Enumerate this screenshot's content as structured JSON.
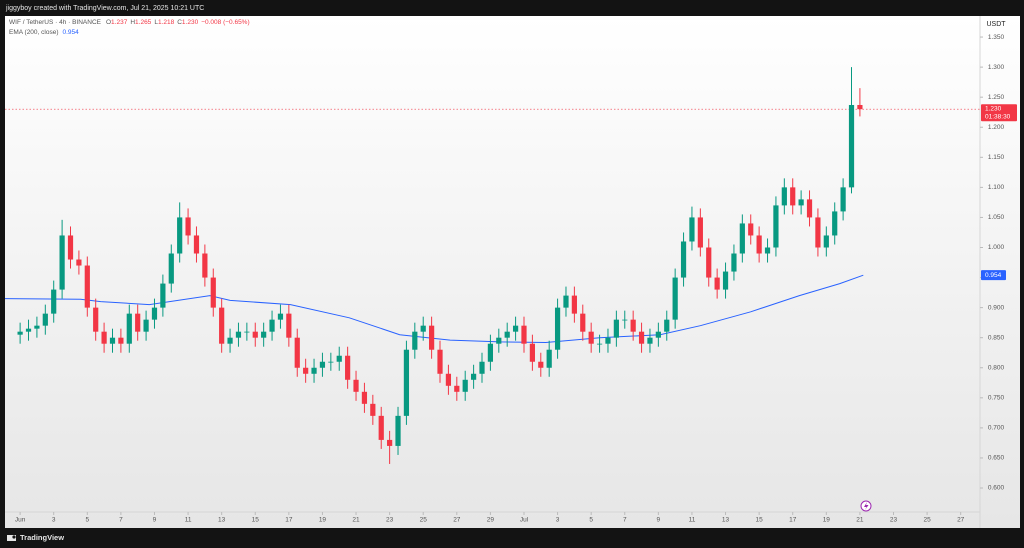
{
  "header": "jiggyboy created with TradingView.com, Jul 21, 2025 10:21 UTC",
  "footer": "TradingView",
  "chart_data": {
    "type": "candlestick",
    "symbol": "WIF / TetherUS · 4h · BINANCE",
    "ohlc": [
      {
        "label": "O",
        "value": "1.237"
      },
      {
        "label": "H",
        "value": "1.265"
      },
      {
        "label": "L",
        "value": "1.218"
      },
      {
        "label": "C",
        "value": "1.230"
      }
    ],
    "change": "−0.008 (−0.65%)",
    "y_unit": "USDT",
    "up_color": "#089981",
    "down_color": "#f23645",
    "grid": false,
    "xlim": [
      -0.9,
      57.15
    ],
    "ylim": [
      0.5335,
      1.385
    ],
    "xticks": [
      {
        "value": 0,
        "label": "Jun"
      },
      {
        "value": 2,
        "label": "3"
      },
      {
        "value": 4,
        "label": "5"
      },
      {
        "value": 6,
        "label": "7"
      },
      {
        "value": 8,
        "label": "9"
      },
      {
        "value": 10,
        "label": "11"
      },
      {
        "value": 12,
        "label": "13"
      },
      {
        "value": 14,
        "label": "15"
      },
      {
        "value": 16,
        "label": "17"
      },
      {
        "value": 18,
        "label": "19"
      },
      {
        "value": 20,
        "label": "21"
      },
      {
        "value": 22,
        "label": "23"
      },
      {
        "value": 24,
        "label": "25"
      },
      {
        "value": 26,
        "label": "27"
      },
      {
        "value": 28,
        "label": "29"
      },
      {
        "value": 30,
        "label": "Jul"
      },
      {
        "value": 32,
        "label": "3"
      },
      {
        "value": 34,
        "label": "5"
      },
      {
        "value": 36,
        "label": "7"
      },
      {
        "value": 38,
        "label": "9"
      },
      {
        "value": 40,
        "label": "11"
      },
      {
        "value": 42,
        "label": "13"
      },
      {
        "value": 44,
        "label": "15"
      },
      {
        "value": 46,
        "label": "17"
      },
      {
        "value": 48,
        "label": "19"
      },
      {
        "value": 50,
        "label": "21"
      },
      {
        "value": 52,
        "label": "23"
      },
      {
        "value": 54,
        "label": "25"
      },
      {
        "value": 56,
        "label": "27"
      }
    ],
    "yticks": [
      {
        "value": 0.6,
        "label": "0.600"
      },
      {
        "value": 0.65,
        "label": "0.650"
      },
      {
        "value": 0.7,
        "label": "0.700"
      },
      {
        "value": 0.75,
        "label": "0.750"
      },
      {
        "value": 0.8,
        "label": "0.800"
      },
      {
        "value": 0.85,
        "label": "0.850"
      },
      {
        "value": 0.9,
        "label": "0.900"
      },
      {
        "value": 0.95,
        "label": "0.950"
      },
      {
        "value": 1.0,
        "label": "1.000"
      },
      {
        "value": 1.05,
        "label": "1.050"
      },
      {
        "value": 1.1,
        "label": "1.100"
      },
      {
        "value": 1.15,
        "label": "1.150"
      },
      {
        "value": 1.2,
        "label": "1.200"
      },
      {
        "value": 1.25,
        "label": "1.250"
      },
      {
        "value": 1.3,
        "label": "1.300"
      },
      {
        "value": 1.35,
        "label": "1.350"
      }
    ],
    "x": [
      0,
      0.5,
      1,
      1.5,
      2,
      2.5,
      3,
      3.5,
      4,
      4.5,
      5,
      5.5,
      6,
      6.5,
      7,
      7.5,
      8,
      8.5,
      9,
      9.5,
      10,
      10.5,
      11,
      11.5,
      12,
      12.5,
      13,
      13.5,
      14,
      14.5,
      15,
      15.5,
      16,
      16.5,
      17,
      17.5,
      18,
      18.5,
      19,
      19.5,
      20,
      20.5,
      21,
      21.5,
      22,
      22.5,
      23,
      23.5,
      24,
      24.5,
      25,
      25.5,
      26,
      26.5,
      27,
      27.5,
      28,
      28.5,
      29,
      29.5,
      30,
      30.5,
      31,
      31.5,
      32,
      32.5,
      33,
      33.5,
      34,
      34.5,
      35,
      35.5,
      36,
      36.5,
      37,
      37.5,
      38,
      38.5,
      39,
      39.5,
      40,
      40.5,
      41,
      41.5,
      42,
      42.5,
      43,
      43.5,
      44,
      44.5,
      45,
      45.5,
      46,
      46.5,
      47,
      47.5,
      48,
      48.5,
      49,
      49.5,
      50
    ],
    "open": [
      0.855,
      0.86,
      0.865,
      0.87,
      0.89,
      0.93,
      1.02,
      0.98,
      0.97,
      0.9,
      0.86,
      0.84,
      0.85,
      0.84,
      0.89,
      0.86,
      0.88,
      0.9,
      0.94,
      0.99,
      1.05,
      1.02,
      0.99,
      0.95,
      0.9,
      0.84,
      0.85,
      0.86,
      0.86,
      0.85,
      0.86,
      0.88,
      0.89,
      0.85,
      0.8,
      0.79,
      0.8,
      0.81,
      0.81,
      0.82,
      0.78,
      0.76,
      0.74,
      0.72,
      0.68,
      0.67,
      0.72,
      0.83,
      0.86,
      0.87,
      0.83,
      0.79,
      0.77,
      0.76,
      0.78,
      0.79,
      0.81,
      0.84,
      0.85,
      0.86,
      0.87,
      0.84,
      0.81,
      0.8,
      0.83,
      0.9,
      0.92,
      0.89,
      0.86,
      0.84,
      0.84,
      0.85,
      0.88,
      0.88,
      0.86,
      0.84,
      0.85,
      0.86,
      0.88,
      0.95,
      1.01,
      1.05,
      1.0,
      0.95,
      0.93,
      0.96,
      0.99,
      1.04,
      1.02,
      0.99,
      1.0,
      1.07,
      1.1,
      1.07,
      1.08,
      1.05,
      1.0,
      1.02,
      1.06,
      1.1,
      1.237
    ],
    "high": [
      0.875,
      0.88,
      0.885,
      0.905,
      0.945,
      1.046,
      1.035,
      0.995,
      0.985,
      0.915,
      0.875,
      0.865,
      0.865,
      0.905,
      0.905,
      0.895,
      0.915,
      0.955,
      1.005,
      1.075,
      1.065,
      1.035,
      1.005,
      0.965,
      0.915,
      0.865,
      0.875,
      0.875,
      0.875,
      0.875,
      0.895,
      0.905,
      0.905,
      0.865,
      0.815,
      0.815,
      0.825,
      0.825,
      0.835,
      0.835,
      0.795,
      0.775,
      0.755,
      0.735,
      0.695,
      0.735,
      0.845,
      0.875,
      0.885,
      0.885,
      0.845,
      0.805,
      0.785,
      0.795,
      0.805,
      0.825,
      0.855,
      0.865,
      0.875,
      0.885,
      0.885,
      0.855,
      0.825,
      0.845,
      0.915,
      0.935,
      0.935,
      0.905,
      0.875,
      0.855,
      0.865,
      0.895,
      0.895,
      0.895,
      0.875,
      0.865,
      0.875,
      0.895,
      0.965,
      1.025,
      1.068,
      1.065,
      1.015,
      0.965,
      0.975,
      1.005,
      1.055,
      1.055,
      1.035,
      1.015,
      1.085,
      1.115,
      1.115,
      1.095,
      1.095,
      1.065,
      1.035,
      1.075,
      1.115,
      1.3,
      1.265
    ],
    "low": [
      0.84,
      0.845,
      0.85,
      0.855,
      0.875,
      0.915,
      0.965,
      0.955,
      0.885,
      0.845,
      0.825,
      0.825,
      0.825,
      0.825,
      0.845,
      0.845,
      0.865,
      0.885,
      0.925,
      0.975,
      1.005,
      0.975,
      0.935,
      0.885,
      0.825,
      0.825,
      0.835,
      0.845,
      0.835,
      0.835,
      0.845,
      0.865,
      0.835,
      0.785,
      0.775,
      0.775,
      0.785,
      0.795,
      0.795,
      0.765,
      0.745,
      0.725,
      0.705,
      0.665,
      0.64,
      0.655,
      0.705,
      0.815,
      0.845,
      0.815,
      0.775,
      0.755,
      0.745,
      0.745,
      0.765,
      0.775,
      0.795,
      0.825,
      0.835,
      0.845,
      0.825,
      0.795,
      0.785,
      0.785,
      0.815,
      0.885,
      0.875,
      0.845,
      0.825,
      0.825,
      0.825,
      0.835,
      0.865,
      0.845,
      0.825,
      0.825,
      0.835,
      0.845,
      0.865,
      0.935,
      0.995,
      0.985,
      0.935,
      0.915,
      0.915,
      0.945,
      0.975,
      1.005,
      0.975,
      0.975,
      0.985,
      1.055,
      1.055,
      1.055,
      1.035,
      0.985,
      0.985,
      1.005,
      1.045,
      1.09,
      1.218
    ],
    "close": [
      0.86,
      0.865,
      0.87,
      0.89,
      0.93,
      1.02,
      0.98,
      0.97,
      0.9,
      0.86,
      0.84,
      0.85,
      0.84,
      0.89,
      0.86,
      0.88,
      0.9,
      0.94,
      0.99,
      1.05,
      1.02,
      0.99,
      0.95,
      0.9,
      0.84,
      0.85,
      0.86,
      0.86,
      0.85,
      0.86,
      0.88,
      0.89,
      0.85,
      0.8,
      0.79,
      0.8,
      0.81,
      0.81,
      0.82,
      0.78,
      0.76,
      0.74,
      0.72,
      0.68,
      0.67,
      0.72,
      0.83,
      0.86,
      0.87,
      0.83,
      0.79,
      0.77,
      0.76,
      0.78,
      0.79,
      0.81,
      0.84,
      0.85,
      0.86,
      0.87,
      0.84,
      0.81,
      0.8,
      0.83,
      0.9,
      0.92,
      0.89,
      0.86,
      0.84,
      0.84,
      0.85,
      0.88,
      0.88,
      0.86,
      0.84,
      0.85,
      0.86,
      0.88,
      0.95,
      1.01,
      1.05,
      1.0,
      0.95,
      0.93,
      0.96,
      0.99,
      1.04,
      1.02,
      0.99,
      1.0,
      1.07,
      1.1,
      1.07,
      1.08,
      1.05,
      1.0,
      1.02,
      1.06,
      1.1,
      1.237,
      1.23
    ],
    "last_price": {
      "value": 1.23,
      "label": "1.230",
      "countdown": "01:38:30"
    },
    "ema": {
      "name": "EMA (200, close)",
      "color": "#2962ff",
      "tag": {
        "value": 0.954,
        "label": "0.954"
      },
      "x": [
        -0.9,
        3.6,
        4.8,
        7.7,
        11.3,
        12.5,
        16.1,
        19.6,
        22.6,
        25.6,
        28.6,
        31.3,
        34.5,
        38.1,
        40.5,
        43.5,
        46.4,
        48.8,
        50.2
      ],
      "values": [
        0.915,
        0.914,
        0.91,
        0.905,
        0.92,
        0.912,
        0.905,
        0.883,
        0.855,
        0.846,
        0.843,
        0.842,
        0.85,
        0.855,
        0.87,
        0.893,
        0.92,
        0.94,
        0.954
      ]
    }
  }
}
